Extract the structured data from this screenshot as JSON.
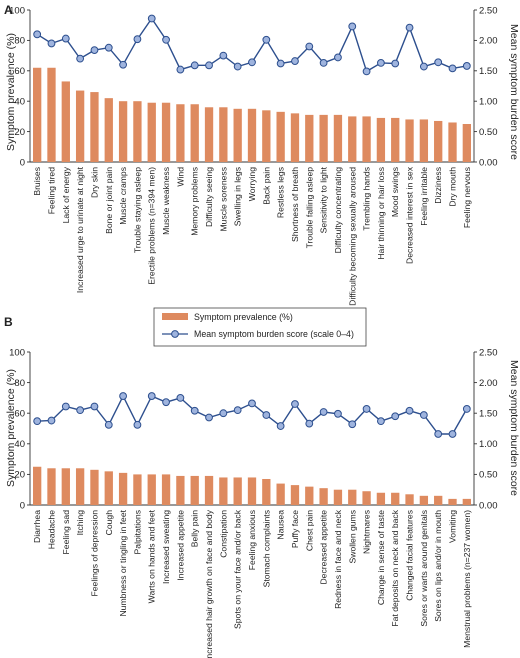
{
  "colors": {
    "bar": "#de8a5f",
    "line": "#2d4f8e",
    "marker_fill": "#9fb4de",
    "axis": "#333333"
  },
  "legend": {
    "bar_label": "Symptom prevalence (%)",
    "line_label": "Mean symptom burden score (scale 0–4)"
  },
  "chart_data": [
    {
      "panel_label": "A",
      "type": "bar+line",
      "ylabel_left": "Symptom prevalence (%)",
      "ylabel_right": "Mean symptom burden score",
      "ylim_left": [
        0,
        100
      ],
      "ylim_right": [
        0,
        2.5
      ],
      "yticks_left": [
        "0",
        "20",
        "40",
        "60",
        "80",
        "100"
      ],
      "yticks_right": [
        "0.00",
        "0.50",
        "1.00",
        "1.50",
        "2.00",
        "2.50"
      ],
      "categories": [
        "Bruises",
        "Feeling tired",
        "Lack of energy",
        "Increased urge to urinate at night",
        "Dry skin",
        "Bone or joint pain",
        "Muscle cramps",
        "Trouble staying asleep",
        "Erectile problems (n=394 men)",
        "Muscle weakness",
        "Wind",
        "Memory problems",
        "Difficulty seeing",
        "Muscle soreness",
        "Swelling in legs",
        "Worrying",
        "Back pain",
        "Restless legs",
        "Shortness of breath",
        "Trouble falling asleep",
        "Sensitivity to light",
        "Difficulty concentrating",
        "Difficulty becoming sexually aroused",
        "Trembling hands",
        "Hair thinning or hair loss",
        "Mood swings",
        "Decreased interest in sex",
        "Feeling irritable",
        "Dizziness",
        "Dry mouth",
        "Feeling nervous"
      ],
      "series": [
        {
          "name": "Symptom prevalence (%)",
          "kind": "bar",
          "axis": "left",
          "values": [
            62,
            62,
            53,
            47,
            46,
            42,
            40,
            40,
            39,
            39,
            38,
            38,
            36,
            36,
            35,
            35,
            34,
            33,
            32,
            31,
            31,
            31,
            30,
            30,
            29,
            29,
            28,
            28,
            27,
            26,
            25
          ]
        },
        {
          "name": "Mean symptom burden score (scale 0–4)",
          "kind": "line",
          "axis": "right",
          "values": [
            2.1,
            1.95,
            2.03,
            1.7,
            1.84,
            1.88,
            1.6,
            2.02,
            2.36,
            2.01,
            1.52,
            1.59,
            1.59,
            1.75,
            1.57,
            1.64,
            2.01,
            1.62,
            1.66,
            1.9,
            1.63,
            1.72,
            2.23,
            1.49,
            1.63,
            1.62,
            2.21,
            1.57,
            1.64,
            1.54,
            1.58
          ]
        }
      ]
    },
    {
      "panel_label": "B",
      "type": "bar+line",
      "ylabel_left": "Symptom prevalence (%)",
      "ylabel_right": "Mean symptom burden score",
      "ylim_left": [
        0,
        100
      ],
      "ylim_right": [
        0,
        2.5
      ],
      "yticks_left": [
        "0",
        "20",
        "40",
        "60",
        "80",
        "100"
      ],
      "yticks_right": [
        "0.00",
        "0.50",
        "1.00",
        "1.50",
        "2.00",
        "2.50"
      ],
      "categories": [
        "Diarrhea",
        "Headache",
        "Feeling sad",
        "Itching",
        "Feelings of depression",
        "Cough",
        "Numbness or tingling in feet",
        "Palpitations",
        "Warts on hands and feet",
        "Increased sweating",
        "Increased appetite",
        "Belly pain",
        "Increased hair growth on face and body",
        "Constipation",
        "Spots on your face and/or back",
        "Feeling anxious",
        "Stomach complaints",
        "Nausea",
        "Puffy face",
        "Chest pain",
        "Decreased appetite",
        "Redness in face and neck",
        "Swollen gums",
        "Nightmares",
        "Change in sense of taste",
        "Fat deposits on neck and back",
        "Changed facial features",
        "Sores or warts around genitals",
        "Sores on lips and/or in mouth",
        "Vomiting",
        "Menstrual problems (n=237 women)"
      ],
      "series": [
        {
          "name": "Symptom prevalence (%)",
          "kind": "bar",
          "axis": "left",
          "values": [
            25,
            24,
            24,
            24,
            23,
            22,
            21,
            20,
            20,
            20,
            19,
            19,
            19,
            18,
            18,
            18,
            17,
            14,
            13,
            12,
            11,
            10,
            10,
            9,
            8,
            8,
            7,
            6,
            6,
            4,
            4
          ]
        },
        {
          "name": "Mean symptom burden score (scale 0–4)",
          "kind": "line",
          "axis": "right",
          "values": [
            1.37,
            1.38,
            1.61,
            1.55,
            1.61,
            1.31,
            1.78,
            1.31,
            1.78,
            1.68,
            1.75,
            1.54,
            1.43,
            1.5,
            1.55,
            1.66,
            1.47,
            1.29,
            1.65,
            1.33,
            1.52,
            1.49,
            1.32,
            1.57,
            1.37,
            1.45,
            1.54,
            1.47,
            1.16,
            1.16,
            1.57
          ]
        }
      ]
    }
  ]
}
